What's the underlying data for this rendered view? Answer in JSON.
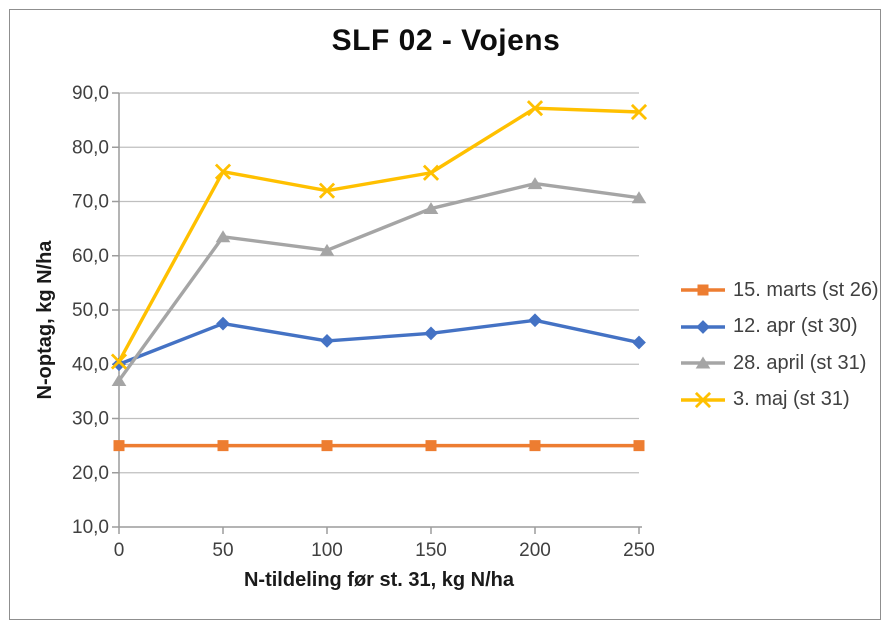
{
  "chart_data": {
    "type": "line",
    "title": "SLF 02 - Vojens",
    "xlabel": "N-tildeling før st. 31, kg N/ha",
    "ylabel": "N-optag, kg N/ha",
    "x": [
      0,
      50,
      100,
      150,
      200,
      250
    ],
    "x_tick_labels": [
      "0",
      "50",
      "100",
      "150",
      "200",
      "250"
    ],
    "y_ticks": [
      10,
      20,
      30,
      40,
      50,
      60,
      70,
      80,
      90
    ],
    "y_tick_labels": [
      "10,0",
      "20,0",
      "30,0",
      "40,0",
      "50,0",
      "60,0",
      "70,0",
      "80,0",
      "90,0"
    ],
    "xlim": [
      0,
      250
    ],
    "ylim": [
      10,
      90
    ],
    "grid": true,
    "legend_position": "right",
    "series": [
      {
        "name": "15. marts (st 26)",
        "color": "#ED7D31",
        "marker": "square",
        "values": [
          25.0,
          25.0,
          25.0,
          25.0,
          25.0,
          25.0
        ]
      },
      {
        "name": "12. apr (st 30)",
        "color": "#4472C4",
        "marker": "diamond",
        "values": [
          40.0,
          47.5,
          44.3,
          45.7,
          48.1,
          44.0
        ]
      },
      {
        "name": "28. april (st 31)",
        "color": "#A5A5A5",
        "marker": "triangle",
        "values": [
          37.0,
          63.5,
          61.0,
          68.7,
          73.3,
          70.7
        ]
      },
      {
        "name": "3. maj (st 31)",
        "color": "#FFC000",
        "marker": "x",
        "values": [
          40.5,
          75.5,
          72.0,
          75.3,
          87.2,
          86.5
        ]
      }
    ],
    "colors": {
      "gridline": "#BFBFBF",
      "axis": "#9c9c9c",
      "tick_text": "#404040",
      "title_text": "#0d0d0d",
      "border": "#8f8f8f",
      "background": "#FFFFFF"
    }
  }
}
